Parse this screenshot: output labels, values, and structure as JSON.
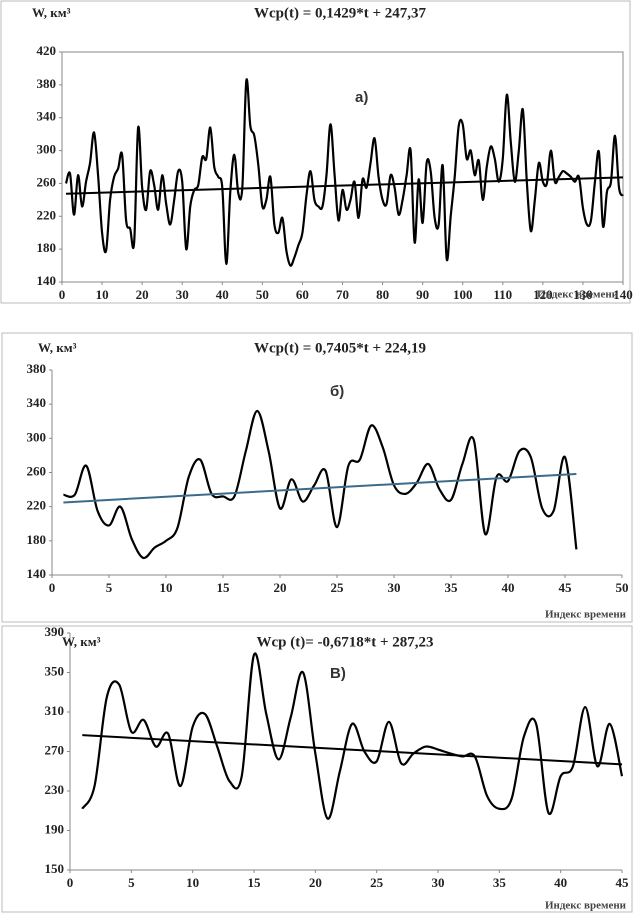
{
  "chart_data": [
    {
      "type": "line",
      "title": "Wcp(t) = 0,1429*t + 247,37",
      "y_label": "W,  км³",
      "annotation": "а)",
      "x_label": "Индекс времени",
      "xlim": [
        0,
        140
      ],
      "xticks": [
        0,
        10,
        20,
        30,
        40,
        50,
        60,
        70,
        80,
        90,
        100,
        110,
        120,
        130,
        140
      ],
      "ylim": [
        140,
        420
      ],
      "yticks": [
        140,
        180,
        220,
        260,
        300,
        340,
        380,
        420
      ],
      "grid": false,
      "frame": true,
      "series": [
        {
          "color": "#000000",
          "x": [
            1,
            2,
            3,
            4,
            5,
            6,
            7,
            8,
            9,
            10,
            11,
            12,
            13,
            14,
            15,
            16,
            17,
            18,
            19,
            20,
            21,
            22,
            23,
            24,
            25,
            26,
            27,
            28,
            29,
            30,
            31,
            32,
            33,
            34,
            35,
            36,
            37,
            38,
            39,
            40,
            41,
            42,
            43,
            44,
            45,
            46,
            47,
            48,
            49,
            50,
            51,
            52,
            53,
            54,
            55,
            56,
            57,
            58,
            59,
            60,
            61,
            62,
            63,
            64,
            65,
            66,
            67,
            68,
            69,
            70,
            71,
            72,
            73,
            74,
            75,
            76,
            77,
            78,
            79,
            80,
            81,
            82,
            83,
            84,
            85,
            86,
            87,
            88,
            89,
            90,
            91,
            92,
            93,
            94,
            95,
            96,
            97,
            98,
            99,
            100,
            101,
            102,
            103,
            104,
            105,
            106,
            107,
            108,
            109,
            110,
            111,
            112,
            113,
            114,
            115,
            116,
            117,
            118,
            119,
            120,
            121,
            122,
            123,
            124,
            125,
            126,
            127,
            128,
            129,
            130,
            131,
            132,
            133,
            134,
            135,
            136,
            137,
            138,
            139,
            140
          ],
          "values": [
            260,
            272,
            222,
            270,
            232,
            262,
            285,
            322,
            270,
            200,
            178,
            240,
            268,
            278,
            295,
            215,
            205,
            188,
            328,
            255,
            228,
            275,
            258,
            228,
            270,
            235,
            210,
            240,
            275,
            262,
            180,
            232,
            252,
            258,
            292,
            290,
            328,
            280,
            268,
            255,
            162,
            250,
            295,
            248,
            255,
            385,
            330,
            318,
            282,
            232,
            240,
            268,
            210,
            200,
            218,
            178,
            160,
            170,
            185,
            200,
            245,
            275,
            240,
            232,
            232,
            270,
            332,
            272,
            215,
            252,
            228,
            240,
            262,
            218,
            265,
            255,
            285,
            315,
            268,
            240,
            235,
            270,
            255,
            222,
            240,
            270,
            300,
            188,
            265,
            212,
            285,
            275,
            218,
            210,
            282,
            168,
            220,
            268,
            330,
            332,
            290,
            300,
            270,
            288,
            240,
            280,
            305,
            290,
            262,
            290,
            368,
            310,
            262,
            300,
            350,
            262,
            202,
            240,
            285,
            262,
            260,
            300,
            262,
            268,
            275,
            272,
            268,
            262,
            268,
            230,
            210,
            215,
            262,
            298,
            208,
            250,
            262,
            318,
            255,
            245
          ]
        },
        {
          "color": "#000000",
          "x": [
            1,
            140
          ],
          "values": [
            247.51,
            267.38
          ]
        }
      ]
    },
    {
      "type": "line",
      "title": "Wcp(t) = 0,7405*t + 224,19",
      "y_label": "W, км³",
      "annotation": "б)",
      "x_label": "Индекс времени",
      "xlim": [
        0,
        50
      ],
      "xticks": [
        0,
        5,
        10,
        15,
        20,
        25,
        30,
        35,
        40,
        45,
        50
      ],
      "ylim": [
        140,
        380
      ],
      "yticks": [
        140,
        180,
        220,
        260,
        300,
        340,
        380
      ],
      "grid": false,
      "frame": false,
      "series": [
        {
          "color": "#000000",
          "x": [
            1,
            2,
            3,
            4,
            5,
            6,
            7,
            8,
            9,
            10,
            11,
            12,
            13,
            14,
            15,
            16,
            17,
            18,
            19,
            20,
            21,
            22,
            23,
            24,
            25,
            26,
            27,
            28,
            29,
            30,
            31,
            32,
            33,
            34,
            35,
            36,
            37,
            38,
            39,
            40,
            41,
            42,
            43,
            44,
            45,
            46
          ],
          "values": [
            234,
            234,
            268,
            215,
            198,
            220,
            182,
            160,
            172,
            180,
            195,
            255,
            275,
            235,
            232,
            232,
            285,
            332,
            285,
            218,
            252,
            226,
            245,
            262,
            196,
            268,
            275,
            315,
            290,
            245,
            235,
            248,
            270,
            240,
            228,
            270,
            298,
            188,
            255,
            250,
            285,
            278,
            218,
            215,
            278,
            170
          ]
        },
        {
          "color": "#3d6a8a",
          "x": [
            1,
            46
          ],
          "values": [
            224.93,
            258.25
          ]
        }
      ]
    },
    {
      "type": "line",
      "title": "Wcp (t)= -0,6718*t + 287,23",
      "y_label": "W, км³",
      "annotation": "В)",
      "x_label": "Индекс времени",
      "xlim": [
        0,
        45
      ],
      "xticks": [
        0,
        5,
        10,
        15,
        20,
        25,
        30,
        35,
        40,
        45
      ],
      "ylim": [
        150,
        390
      ],
      "yticks": [
        150,
        190,
        230,
        270,
        310,
        350,
        390
      ],
      "grid": false,
      "frame": false,
      "series": [
        {
          "color": "#000000",
          "x": [
            1,
            2,
            3,
            4,
            5,
            6,
            7,
            8,
            9,
            10,
            11,
            12,
            13,
            14,
            15,
            16,
            17,
            18,
            19,
            20,
            21,
            22,
            23,
            24,
            25,
            26,
            27,
            28,
            29,
            30,
            31,
            32,
            33,
            34,
            35,
            36,
            37,
            38,
            39,
            40,
            41,
            42,
            43,
            44,
            45
          ],
          "values": [
            212,
            235,
            325,
            338,
            290,
            302,
            275,
            288,
            235,
            295,
            308,
            275,
            240,
            245,
            368,
            308,
            262,
            305,
            350,
            268,
            202,
            250,
            298,
            270,
            260,
            300,
            258,
            268,
            275,
            272,
            268,
            265,
            265,
            225,
            212,
            222,
            285,
            298,
            208,
            245,
            255,
            315,
            255,
            298,
            245
          ]
        },
        {
          "color": "#000000",
          "x": [
            1,
            45
          ],
          "values": [
            286.56,
            257.0
          ]
        }
      ]
    }
  ]
}
